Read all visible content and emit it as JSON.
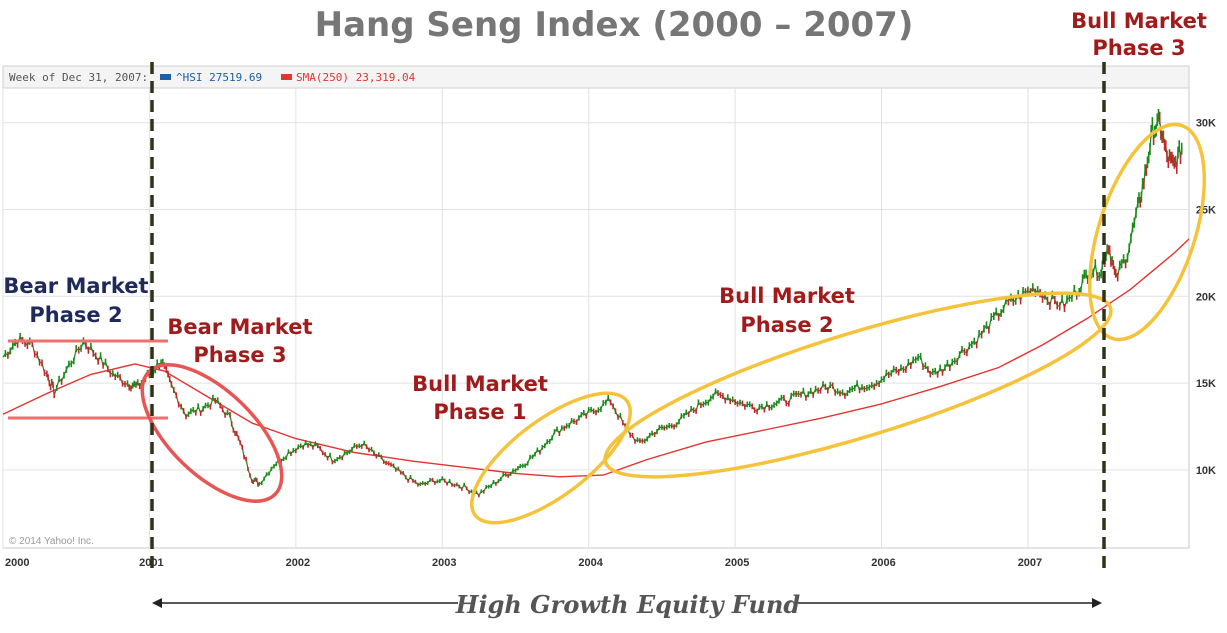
{
  "chart_data": {
    "type": "line",
    "title": "Hang Seng Index (2000 – 2007)",
    "legend": {
      "prefix": "Week of Dec 31, 2007:",
      "series1_label": "^HSI 27519.69",
      "series2_label": "SMA(250) 23,319.04",
      "placement": "top-left"
    },
    "x_ticks": [
      "2000",
      "2001",
      "2002",
      "2003",
      "2004",
      "2005",
      "2006",
      "2007"
    ],
    "y_ticks": [
      "10K",
      "15K",
      "20K",
      "25K",
      "30K"
    ],
    "y_tick_values": [
      10000,
      15000,
      20000,
      25000,
      30000
    ],
    "xlim": [
      2000.0,
      2008.1
    ],
    "ylim": [
      5500,
      32000
    ],
    "grid": true,
    "series": [
      {
        "name": "^HSI",
        "color": "#1a8a1a",
        "x": [
          2000.0,
          2000.1,
          2000.2,
          2000.3,
          2000.35,
          2000.45,
          2000.55,
          2000.65,
          2000.75,
          2000.85,
          2000.92,
          2001.0,
          2001.08,
          2001.15,
          2001.25,
          2001.35,
          2001.45,
          2001.55,
          2001.62,
          2001.7,
          2001.75,
          2001.85,
          2001.95,
          2002.05,
          2002.15,
          2002.25,
          2002.35,
          2002.45,
          2002.55,
          2002.65,
          2002.75,
          2002.85,
          2002.95,
          2003.05,
          2003.15,
          2003.25,
          2003.35,
          2003.45,
          2003.55,
          2003.65,
          2003.75,
          2003.85,
          2003.95,
          2004.05,
          2004.15,
          2004.25,
          2004.35,
          2004.45,
          2004.55,
          2004.65,
          2004.75,
          2004.85,
          2004.95,
          2005.05,
          2005.15,
          2005.25,
          2005.35,
          2005.45,
          2005.55,
          2005.65,
          2005.75,
          2005.85,
          2005.95,
          2006.05,
          2006.15,
          2006.25,
          2006.35,
          2006.45,
          2006.55,
          2006.65,
          2006.75,
          2006.85,
          2006.95,
          2007.05,
          2007.15,
          2007.25,
          2007.35,
          2007.42,
          2007.5,
          2007.55,
          2007.6,
          2007.68,
          2007.75,
          2007.8,
          2007.85,
          2007.9,
          2007.95,
          2008.0,
          2008.05
        ],
        "values": [
          16500,
          17500,
          17200,
          15500,
          14500,
          16000,
          17400,
          16500,
          15500,
          15000,
          14800,
          15500,
          16300,
          14800,
          13200,
          13500,
          14000,
          13000,
          11500,
          9500,
          9200,
          10300,
          11000,
          11500,
          11300,
          10600,
          11000,
          11500,
          10800,
          10200,
          9600,
          9100,
          9400,
          9300,
          9000,
          8600,
          9200,
          9800,
          10300,
          11000,
          12000,
          12600,
          13000,
          13500,
          14000,
          12400,
          11500,
          12200,
          12500,
          13000,
          13700,
          14300,
          14200,
          13800,
          13600,
          13800,
          14000,
          14300,
          14600,
          14800,
          14500,
          14800,
          15000,
          15500,
          15800,
          16500,
          15500,
          16000,
          16800,
          17500,
          18500,
          19500,
          20000,
          20500,
          19800,
          19500,
          20500,
          21500,
          21500,
          23000,
          21000,
          22500,
          25000,
          27000,
          29500,
          30000,
          28000,
          27500,
          28500
        ]
      },
      {
        "name": "SMA(250)",
        "color": "#e3342f",
        "x": [
          2000.0,
          2000.3,
          2000.6,
          2000.9,
          2001.1,
          2001.4,
          2001.7,
          2002.0,
          2002.4,
          2002.8,
          2003.2,
          2003.5,
          2003.8,
          2004.1,
          2004.4,
          2004.8,
          2005.2,
          2005.6,
          2006.0,
          2006.4,
          2006.8,
          2007.1,
          2007.4,
          2007.7,
          2008.0,
          2008.1
        ],
        "values": [
          13200,
          14400,
          15500,
          16100,
          15700,
          14200,
          12700,
          11800,
          11000,
          10500,
          10100,
          9800,
          9600,
          9700,
          10600,
          11600,
          12300,
          13000,
          13800,
          14800,
          15900,
          17200,
          18700,
          20400,
          22500,
          23300
        ]
      }
    ],
    "annotations": [
      {
        "line1": "Bear Market",
        "line2": "Phase 2",
        "color": "#1e2a5a"
      },
      {
        "line1": "Bear Market",
        "line2": "Phase 3",
        "color": "#a01c1c"
      },
      {
        "line1": "Bull Market",
        "line2": "Phase 1",
        "color": "#a01c1c"
      },
      {
        "line1": "Bull Market",
        "line2": "Phase 2",
        "color": "#a01c1c"
      },
      {
        "line1": "Bull Market",
        "line2": "Phase 3",
        "color": "#a01c1c"
      }
    ],
    "fund_label": "High Growth Equity Fund",
    "copyright": "© 2014 Yahoo! Inc."
  },
  "colors": {
    "bear_phase2_lines": "#f07070",
    "bear_phase3_ellipse": "#e85555",
    "bull_ellipses": "#f5c33b",
    "divider": "#2d3319",
    "legend_hsi": "#1b5fa8",
    "legend_sma": "#e3342f"
  }
}
